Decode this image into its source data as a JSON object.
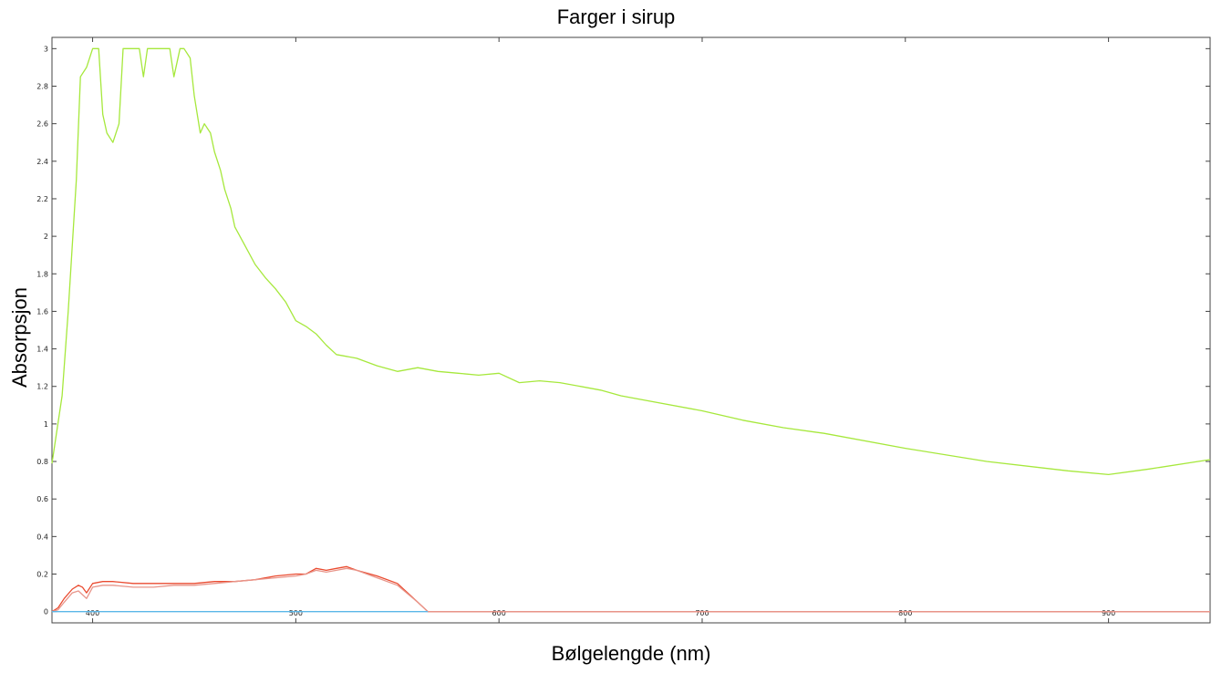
{
  "chart_data": {
    "type": "line",
    "title": "Farger i sirup",
    "xlabel": "Bølgelengde (nm)",
    "ylabel": "Absorpsjon",
    "xlim": [
      380,
      950
    ],
    "ylim": [
      -0.06,
      3.06
    ],
    "xticks": [
      400,
      500,
      600,
      700,
      800,
      900
    ],
    "yticks": [
      0,
      0.2,
      0.4,
      0.6,
      0.8,
      1,
      1.2,
      1.4,
      1.6,
      1.8,
      2,
      2.2,
      2.4,
      2.6,
      2.8,
      3
    ],
    "ytick_labels": [
      "0",
      "0.2",
      "0.4",
      "0.6",
      "0.8",
      "1",
      "1.2",
      "1.4",
      "1.6",
      "1.8",
      "2",
      "2.2",
      "2.4",
      "2.6",
      "2.8",
      "3"
    ],
    "grid": false,
    "series": [
      {
        "color": "#a6e83c",
        "x": [
          380,
          385,
          388,
          392,
          394,
          397,
          400,
          403,
          405,
          407,
          410,
          413,
          415,
          417,
          420,
          423,
          425,
          427,
          430,
          435,
          438,
          440,
          443,
          445,
          448,
          450,
          453,
          455,
          458,
          460,
          463,
          465,
          468,
          470,
          475,
          480,
          485,
          490,
          495,
          500,
          505,
          510,
          515,
          520,
          530,
          540,
          550,
          560,
          570,
          580,
          590,
          600,
          610,
          620,
          630,
          650,
          660,
          670,
          700,
          720,
          740,
          760,
          800,
          840,
          880,
          900,
          920,
          950
        ],
        "y": [
          0.79,
          1.15,
          1.6,
          2.3,
          2.85,
          2.9,
          3.0,
          3.0,
          2.65,
          2.55,
          2.5,
          2.6,
          3.0,
          3.0,
          3.0,
          3.0,
          2.85,
          3.0,
          3.0,
          3.0,
          3.0,
          2.85,
          3.0,
          3.0,
          2.95,
          2.75,
          2.55,
          2.6,
          2.55,
          2.45,
          2.35,
          2.25,
          2.15,
          2.05,
          1.95,
          1.85,
          1.78,
          1.72,
          1.65,
          1.55,
          1.52,
          1.48,
          1.42,
          1.37,
          1.35,
          1.31,
          1.28,
          1.3,
          1.28,
          1.27,
          1.26,
          1.27,
          1.22,
          1.23,
          1.22,
          1.18,
          1.15,
          1.13,
          1.07,
          1.02,
          0.98,
          0.95,
          0.87,
          0.8,
          0.75,
          0.73,
          0.76,
          0.81
        ]
      },
      {
        "color": "#ea4b30",
        "x": [
          380,
          383,
          386,
          390,
          393,
          395,
          397,
          400,
          405,
          410,
          420,
          430,
          440,
          450,
          460,
          470,
          480,
          490,
          500,
          505,
          510,
          515,
          520,
          525,
          530,
          540,
          550,
          560,
          565,
          950
        ],
        "y": [
          0.0,
          0.02,
          0.07,
          0.12,
          0.14,
          0.13,
          0.1,
          0.15,
          0.16,
          0.16,
          0.15,
          0.15,
          0.15,
          0.15,
          0.16,
          0.16,
          0.17,
          0.19,
          0.2,
          0.2,
          0.23,
          0.22,
          0.23,
          0.24,
          0.22,
          0.19,
          0.15,
          0.05,
          0.0,
          0.0
        ]
      },
      {
        "color": "#e8958a",
        "x": [
          380,
          383,
          386,
          390,
          393,
          395,
          397,
          400,
          405,
          410,
          420,
          430,
          440,
          450,
          460,
          470,
          480,
          490,
          500,
          505,
          510,
          515,
          520,
          525,
          530,
          540,
          550,
          560,
          565,
          950
        ],
        "y": [
          0.0,
          0.01,
          0.05,
          0.1,
          0.11,
          0.09,
          0.07,
          0.13,
          0.14,
          0.14,
          0.13,
          0.13,
          0.14,
          0.14,
          0.15,
          0.16,
          0.17,
          0.18,
          0.19,
          0.2,
          0.22,
          0.21,
          0.22,
          0.23,
          0.22,
          0.18,
          0.14,
          0.05,
          0.0,
          0.0
        ]
      },
      {
        "color": "#5bb7e8",
        "x": [
          380,
          565
        ],
        "y": [
          0.0,
          0.0
        ]
      }
    ]
  }
}
